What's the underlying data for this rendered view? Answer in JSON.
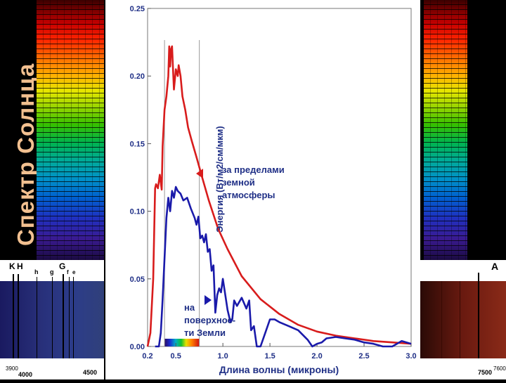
{
  "side_label": "Спектр Солнца",
  "left_strip": {
    "line_labels": [
      "K",
      "H",
      "h",
      "g",
      "G",
      "f",
      "e"
    ],
    "scale_labels": [
      "4000",
      "4500"
    ],
    "scale_small": "3900"
  },
  "right_strip": {
    "line_labels": [
      "A"
    ],
    "scale_labels": [
      "7500"
    ],
    "scale_small": "7600"
  },
  "chart_data": {
    "type": "line",
    "xlabel": "Длина волны (микроны)",
    "ylabel": "Энергия (Вт/м2/см/мкм)",
    "xlim": [
      0.2,
      3.0
    ],
    "ylim": [
      0,
      0.25
    ],
    "x_ticks": [
      0.2,
      0.5,
      1.0,
      1.5,
      2.0,
      2.5,
      3.0
    ],
    "x_tick_labels": [
      "0.2",
      "0.5",
      "1.0",
      "1.5",
      "2.0",
      "2.5",
      "3.0"
    ],
    "y_ticks": [
      0,
      0.05,
      0.1,
      0.15,
      0.2,
      0.25
    ],
    "y_tick_labels": [
      "0.00",
      "0.05",
      "0.10",
      "0.15",
      "0.20",
      "0.25"
    ],
    "visible_band": [
      0.38,
      0.75
    ],
    "series": [
      {
        "name": "за пределами земной атмосферы",
        "color": "#d81c1c",
        "x": [
          0.2,
          0.23,
          0.26,
          0.28,
          0.29,
          0.31,
          0.33,
          0.35,
          0.36,
          0.38,
          0.4,
          0.42,
          0.43,
          0.44,
          0.45,
          0.46,
          0.47,
          0.48,
          0.5,
          0.52,
          0.53,
          0.55,
          0.57,
          0.6,
          0.63,
          0.67,
          0.72,
          0.78,
          0.85,
          0.95,
          1.05,
          1.2,
          1.4,
          1.6,
          1.8,
          2.0,
          2.2,
          2.4,
          2.6,
          2.8,
          3.0
        ],
        "y": [
          0.0,
          0.01,
          0.05,
          0.117,
          0.12,
          0.117,
          0.127,
          0.116,
          0.148,
          0.175,
          0.185,
          0.2,
          0.222,
          0.207,
          0.22,
          0.222,
          0.205,
          0.19,
          0.205,
          0.2,
          0.208,
          0.2,
          0.185,
          0.175,
          0.162,
          0.152,
          0.14,
          0.125,
          0.108,
          0.087,
          0.072,
          0.052,
          0.035,
          0.024,
          0.016,
          0.011,
          0.008,
          0.006,
          0.004,
          0.003,
          0.002
        ]
      },
      {
        "name": "на поверхности Земли",
        "color": "#1a1aaa",
        "x": [
          0.28,
          0.3,
          0.32,
          0.34,
          0.36,
          0.38,
          0.4,
          0.42,
          0.44,
          0.46,
          0.48,
          0.5,
          0.52,
          0.55,
          0.58,
          0.62,
          0.66,
          0.7,
          0.72,
          0.74,
          0.76,
          0.78,
          0.8,
          0.82,
          0.84,
          0.86,
          0.88,
          0.9,
          0.92,
          0.94,
          0.96,
          0.98,
          1.0,
          1.05,
          1.08,
          1.1,
          1.12,
          1.15,
          1.2,
          1.25,
          1.28,
          1.3,
          1.33,
          1.36,
          1.4,
          1.45,
          1.5,
          1.55,
          1.6,
          1.7,
          1.8,
          1.9,
          1.95,
          2.0,
          2.05,
          2.1,
          2.2,
          2.3,
          2.4,
          2.5,
          2.6,
          2.7,
          2.8,
          2.9,
          3.0
        ],
        "y": [
          0.0,
          0.0,
          0.0,
          0.01,
          0.035,
          0.065,
          0.095,
          0.11,
          0.1,
          0.115,
          0.11,
          0.118,
          0.115,
          0.113,
          0.108,
          0.11,
          0.102,
          0.095,
          0.09,
          0.096,
          0.08,
          0.082,
          0.077,
          0.083,
          0.07,
          0.072,
          0.056,
          0.06,
          0.025,
          0.038,
          0.043,
          0.04,
          0.05,
          0.027,
          0.018,
          0.02,
          0.034,
          0.03,
          0.036,
          0.028,
          0.034,
          0.012,
          0.015,
          0.0,
          0.0,
          0.01,
          0.02,
          0.02,
          0.018,
          0.015,
          0.012,
          0.005,
          0.0,
          0.002,
          0.003,
          0.006,
          0.007,
          0.006,
          0.005,
          0.003,
          0.002,
          0.0,
          0.0,
          0.004,
          0.002
        ]
      }
    ],
    "annotations": [
      {
        "text": [
          "за пределами",
          "земной",
          "атмосферы"
        ],
        "series": 0
      },
      {
        "text": [
          "на",
          "поверхнос-",
          "ти Земли"
        ],
        "series": 1
      }
    ]
  }
}
